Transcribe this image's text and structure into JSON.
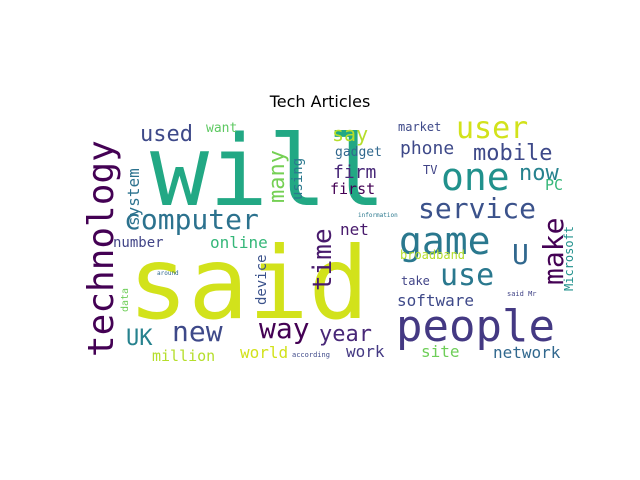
{
  "chart_data": {
    "type": "wordcloud",
    "title": "Tech Articles",
    "palette": "viridis",
    "background": "#ffffff",
    "words": [
      {
        "text": "will",
        "color": "#22a884"
      },
      {
        "text": "said",
        "color": "#d2e21b"
      },
      {
        "text": "people",
        "color": "#443983"
      },
      {
        "text": "technology",
        "color": "#440154"
      },
      {
        "text": "game",
        "color": "#2a788e"
      },
      {
        "text": "one",
        "color": "#21918c"
      },
      {
        "text": "user",
        "color": "#d2e21b"
      },
      {
        "text": "use",
        "color": "#2a788e"
      },
      {
        "text": "computer",
        "color": "#2c728e"
      },
      {
        "text": "service",
        "color": "#3b528b"
      },
      {
        "text": "new",
        "color": "#3e4989"
      },
      {
        "text": "way",
        "color": "#440154"
      },
      {
        "text": "make",
        "color": "#440154"
      },
      {
        "text": "year",
        "color": "#482878"
      },
      {
        "text": "time",
        "color": "#481a6c"
      },
      {
        "text": "U",
        "color": "#31688e"
      },
      {
        "text": "mobile",
        "color": "#3e4989"
      },
      {
        "text": "now",
        "color": "#26828e"
      },
      {
        "text": "used",
        "color": "#3e4989"
      },
      {
        "text": "many",
        "color": "#75d054"
      },
      {
        "text": "UK",
        "color": "#26828e"
      },
      {
        "text": "say",
        "color": "#b5de2b"
      },
      {
        "text": "software",
        "color": "#3e4989"
      },
      {
        "text": "firm",
        "color": "#482878"
      },
      {
        "text": "phone",
        "color": "#3e4989"
      },
      {
        "text": "PC",
        "color": "#35b779"
      },
      {
        "text": "system",
        "color": "#2c728e"
      },
      {
        "text": "net",
        "color": "#481a6c"
      },
      {
        "text": "online",
        "color": "#35b779"
      },
      {
        "text": "site",
        "color": "#6ece58"
      },
      {
        "text": "network",
        "color": "#31688e"
      },
      {
        "text": "work",
        "color": "#443983"
      },
      {
        "text": "world",
        "color": "#d2e21b"
      },
      {
        "text": "million",
        "color": "#b5de2b"
      },
      {
        "text": "number",
        "color": "#414487"
      },
      {
        "text": "first",
        "color": "#440154"
      },
      {
        "text": "using",
        "color": "#2a788e"
      },
      {
        "text": "device",
        "color": "#3b528b"
      },
      {
        "text": "gadget",
        "color": "#31688e"
      },
      {
        "text": "want",
        "color": "#5ec962"
      },
      {
        "text": "market",
        "color": "#3e4989"
      },
      {
        "text": "TV",
        "color": "#414487"
      },
      {
        "text": "broadband",
        "color": "#b5de2b"
      },
      {
        "text": "take",
        "color": "#414487"
      },
      {
        "text": "Microsoft",
        "color": "#21918c"
      },
      {
        "text": "data",
        "color": "#6ece58"
      },
      {
        "text": "information",
        "color": "#2a788e"
      },
      {
        "text": "around",
        "color": "#31688e"
      },
      {
        "text": "according",
        "color": "#3e4989"
      },
      {
        "text": "said Mr",
        "color": "#414487"
      }
    ]
  }
}
